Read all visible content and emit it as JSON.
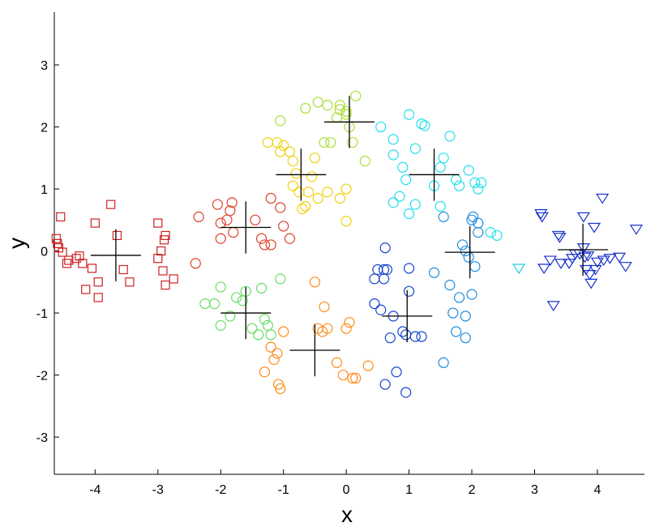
{
  "chart_data": {
    "type": "scatter",
    "title": "",
    "xlabel": "x",
    "ylabel": "y",
    "xlim": [
      -4.65,
      4.75
    ],
    "ylim": [
      -3.6,
      3.85
    ],
    "xticks": [
      -4,
      -3,
      -2,
      -1,
      0,
      1,
      2,
      3,
      4
    ],
    "yticks": [
      -3,
      -2,
      -1,
      0,
      1,
      2,
      3
    ],
    "xtick_labels": [
      "-4",
      "-3",
      "-2",
      "-1",
      "0",
      "1",
      "2",
      "3",
      "4"
    ],
    "ytick_labels": [
      "-3",
      "-2",
      "-1",
      "0",
      "1",
      "2",
      "3"
    ],
    "grid": false,
    "legend": "none",
    "series": [
      {
        "marker": "square",
        "color": "#cc2222",
        "points": [
          [
            -4.55,
            0.55
          ],
          [
            -4.62,
            0.2
          ],
          [
            -4.6,
            0.12
          ],
          [
            -4.58,
            0.05
          ],
          [
            -4.52,
            -0.02
          ],
          [
            -4.45,
            -0.2
          ],
          [
            -4.42,
            -0.15
          ],
          [
            -4.3,
            -0.12
          ],
          [
            -4.25,
            -0.08
          ],
          [
            -4.2,
            -0.2
          ],
          [
            -4.15,
            -0.62
          ],
          [
            -4.05,
            -0.28
          ],
          [
            -4.0,
            0.45
          ],
          [
            -3.95,
            -0.5
          ],
          [
            -3.95,
            -0.75
          ],
          [
            -3.75,
            0.75
          ],
          [
            -3.65,
            0.25
          ],
          [
            -3.55,
            -0.3
          ],
          [
            -3.45,
            -0.5
          ],
          [
            -3.0,
            0.45
          ],
          [
            -3.0,
            -0.12
          ],
          [
            -2.95,
            0.0
          ],
          [
            -2.92,
            -0.32
          ],
          [
            -2.9,
            0.18
          ],
          [
            -2.88,
            0.25
          ],
          [
            -2.88,
            -0.55
          ],
          [
            -2.75,
            -0.45
          ]
        ]
      },
      {
        "marker": "circle",
        "color": "#e0402a",
        "points": [
          [
            -2.4,
            -0.2
          ],
          [
            -2.35,
            0.55
          ],
          [
            -2.05,
            0.75
          ],
          [
            -2.0,
            0.45
          ],
          [
            -2.0,
            0.2
          ],
          [
            -1.9,
            0.5
          ],
          [
            -1.85,
            0.65
          ],
          [
            -1.82,
            0.78
          ],
          [
            -1.8,
            0.3
          ],
          [
            -1.45,
            0.5
          ],
          [
            -1.35,
            0.2
          ],
          [
            -1.3,
            0.1
          ],
          [
            -1.2,
            0.85
          ],
          [
            -1.2,
            0.1
          ],
          [
            -1.05,
            0.7
          ],
          [
            -1.0,
            0.4
          ],
          [
            -0.9,
            0.2
          ]
        ]
      },
      {
        "marker": "circle",
        "color": "#66dd66",
        "points": [
          [
            -2.25,
            -0.85
          ],
          [
            -2.1,
            -0.85
          ],
          [
            -2.0,
            -0.58
          ],
          [
            -2.0,
            -1.2
          ],
          [
            -1.85,
            -1.05
          ],
          [
            -1.75,
            -0.75
          ],
          [
            -1.65,
            -0.8
          ],
          [
            -1.6,
            -0.65
          ],
          [
            -1.5,
            -1.25
          ],
          [
            -1.4,
            -1.35
          ],
          [
            -1.35,
            -0.6
          ],
          [
            -1.3,
            -1.1
          ],
          [
            -1.25,
            -1.2
          ],
          [
            -1.2,
            -1.35
          ],
          [
            -1.05,
            -0.45
          ]
        ]
      },
      {
        "marker": "circle",
        "color": "#ff8c1a",
        "points": [
          [
            -1.3,
            -1.95
          ],
          [
            -1.2,
            -1.55
          ],
          [
            -1.15,
            -1.75
          ],
          [
            -1.1,
            -1.65
          ],
          [
            -1.08,
            -2.15
          ],
          [
            -1.05,
            -2.22
          ],
          [
            -1.0,
            -1.3
          ],
          [
            -0.5,
            -0.5
          ],
          [
            -0.45,
            -1.25
          ],
          [
            -0.38,
            -1.3
          ],
          [
            -0.35,
            -0.9
          ],
          [
            -0.3,
            -1.25
          ],
          [
            -0.15,
            -1.8
          ],
          [
            -0.05,
            -2.0
          ],
          [
            0.0,
            -1.25
          ],
          [
            0.05,
            -1.15
          ],
          [
            0.1,
            -2.05
          ],
          [
            0.15,
            -2.05
          ],
          [
            0.35,
            -1.85
          ]
        ]
      },
      {
        "marker": "circle",
        "color": "#f0d010",
        "points": [
          [
            -1.25,
            1.75
          ],
          [
            -1.1,
            1.75
          ],
          [
            -1.05,
            1.6
          ],
          [
            -1.0,
            1.7
          ],
          [
            -0.9,
            1.6
          ],
          [
            -0.85,
            1.05
          ],
          [
            -0.8,
            1.25
          ],
          [
            -0.75,
            0.95
          ],
          [
            -0.7,
            0.68
          ],
          [
            -0.65,
            0.72
          ],
          [
            -0.6,
            0.95
          ],
          [
            -0.55,
            1.2
          ],
          [
            -0.5,
            1.5
          ],
          [
            -0.45,
            0.85
          ],
          [
            -0.3,
            0.95
          ],
          [
            -0.1,
            0.85
          ],
          [
            0.0,
            1.0
          ],
          [
            0.0,
            0.48
          ],
          [
            -0.85,
            1.45
          ]
        ]
      },
      {
        "marker": "circle",
        "color": "#a8e030",
        "points": [
          [
            -1.05,
            2.1
          ],
          [
            -0.65,
            2.3
          ],
          [
            -0.45,
            2.4
          ],
          [
            -0.35,
            1.75
          ],
          [
            -0.3,
            2.35
          ],
          [
            -0.25,
            1.75
          ],
          [
            -0.15,
            2.15
          ],
          [
            -0.1,
            2.28
          ],
          [
            0.0,
            2.2
          ],
          [
            0.0,
            2.25
          ],
          [
            0.05,
            2.0
          ],
          [
            0.1,
            1.75
          ],
          [
            0.15,
            2.5
          ],
          [
            0.3,
            1.45
          ],
          [
            -0.1,
            2.35
          ]
        ]
      },
      {
        "marker": "circle",
        "color": "#22e0ee",
        "points": [
          [
            0.55,
            2.0
          ],
          [
            0.75,
            1.8
          ],
          [
            0.75,
            1.55
          ],
          [
            0.75,
            0.78
          ],
          [
            0.85,
            0.88
          ],
          [
            0.9,
            1.35
          ],
          [
            0.95,
            1.15
          ],
          [
            1.0,
            0.6
          ],
          [
            1.0,
            2.2
          ],
          [
            1.1,
            1.65
          ],
          [
            1.1,
            0.75
          ],
          [
            1.2,
            2.05
          ],
          [
            1.25,
            2.02
          ],
          [
            1.4,
            1.05
          ],
          [
            1.5,
            1.35
          ],
          [
            1.5,
            0.72
          ],
          [
            1.55,
            1.5
          ],
          [
            1.65,
            1.85
          ],
          [
            1.75,
            1.15
          ],
          [
            1.8,
            1.05
          ],
          [
            1.95,
            1.3
          ],
          [
            2.05,
            1.1
          ],
          [
            2.1,
            1.0
          ],
          [
            2.15,
            1.1
          ],
          [
            2.3,
            0.3
          ],
          [
            2.4,
            0.25
          ]
        ]
      },
      {
        "marker": "circle",
        "color": "#1e8ce0",
        "points": [
          [
            1.4,
            -0.35
          ],
          [
            1.55,
            -1.8
          ],
          [
            1.55,
            0.55
          ],
          [
            1.65,
            -0.55
          ],
          [
            1.7,
            -1.0
          ],
          [
            1.75,
            -1.3
          ],
          [
            1.8,
            -0.75
          ],
          [
            1.85,
            0.1
          ],
          [
            1.9,
            0.0
          ],
          [
            1.9,
            -1.05
          ],
          [
            1.9,
            -1.4
          ],
          [
            1.95,
            -0.1
          ],
          [
            2.0,
            -0.7
          ],
          [
            2.0,
            0.5
          ],
          [
            2.02,
            0.55
          ],
          [
            2.05,
            -0.25
          ],
          [
            2.1,
            0.45
          ],
          [
            2.1,
            0.3
          ]
        ]
      },
      {
        "marker": "circle",
        "color": "#1444cc",
        "points": [
          [
            0.45,
            -0.85
          ],
          [
            0.45,
            -0.45
          ],
          [
            0.5,
            -0.3
          ],
          [
            0.55,
            -0.95
          ],
          [
            0.6,
            -0.45
          ],
          [
            0.6,
            -0.3
          ],
          [
            0.62,
            0.05
          ],
          [
            0.65,
            -0.3
          ],
          [
            0.62,
            -2.15
          ],
          [
            0.7,
            -1.4
          ],
          [
            0.75,
            -1.05
          ],
          [
            0.8,
            -1.95
          ],
          [
            0.9,
            -1.3
          ],
          [
            0.95,
            -2.28
          ],
          [
            0.95,
            -1.35
          ],
          [
            1.0,
            -0.28
          ],
          [
            1.0,
            -0.65
          ],
          [
            1.1,
            -1.38
          ],
          [
            1.2,
            -1.38
          ]
        ]
      },
      {
        "marker": "triangle-down",
        "color": "#1ecfe0",
        "points": [
          [
            2.75,
            -0.28
          ]
        ]
      },
      {
        "marker": "triangle-down",
        "color": "#1a33cc",
        "points": [
          [
            3.1,
            0.6
          ],
          [
            3.12,
            0.55
          ],
          [
            3.15,
            -0.28
          ],
          [
            3.25,
            -0.15
          ],
          [
            3.3,
            -0.88
          ],
          [
            3.38,
            0.25
          ],
          [
            3.4,
            0.22
          ],
          [
            3.42,
            -0.2
          ],
          [
            3.55,
            -0.2
          ],
          [
            3.6,
            -0.12
          ],
          [
            3.65,
            -0.05
          ],
          [
            3.72,
            -0.05
          ],
          [
            3.78,
            0.55
          ],
          [
            3.78,
            0.05
          ],
          [
            3.8,
            -0.1
          ],
          [
            3.82,
            -0.3
          ],
          [
            3.85,
            -0.08
          ],
          [
            3.88,
            -0.38
          ],
          [
            3.9,
            -0.52
          ],
          [
            3.95,
            0.38
          ],
          [
            3.97,
            -0.3
          ],
          [
            4.0,
            -0.18
          ],
          [
            4.08,
            0.85
          ],
          [
            4.1,
            -0.15
          ],
          [
            4.2,
            -0.12
          ],
          [
            4.35,
            -0.1
          ],
          [
            4.45,
            -0.25
          ],
          [
            4.62,
            0.35
          ]
        ]
      }
    ],
    "centroids": {
      "marker": "plus",
      "color": "#000000",
      "points": [
        [
          -3.67,
          -0.07
        ],
        [
          -1.6,
          0.38
        ],
        [
          -1.6,
          -1.0
        ],
        [
          -0.5,
          -1.6
        ],
        [
          -0.72,
          1.23
        ],
        [
          0.05,
          2.08
        ],
        [
          1.4,
          1.23
        ],
        [
          1.97,
          -0.02
        ],
        [
          0.97,
          -1.05
        ],
        [
          3.77,
          0.02
        ]
      ],
      "half_width": 0.4,
      "half_height": 0.42
    }
  }
}
